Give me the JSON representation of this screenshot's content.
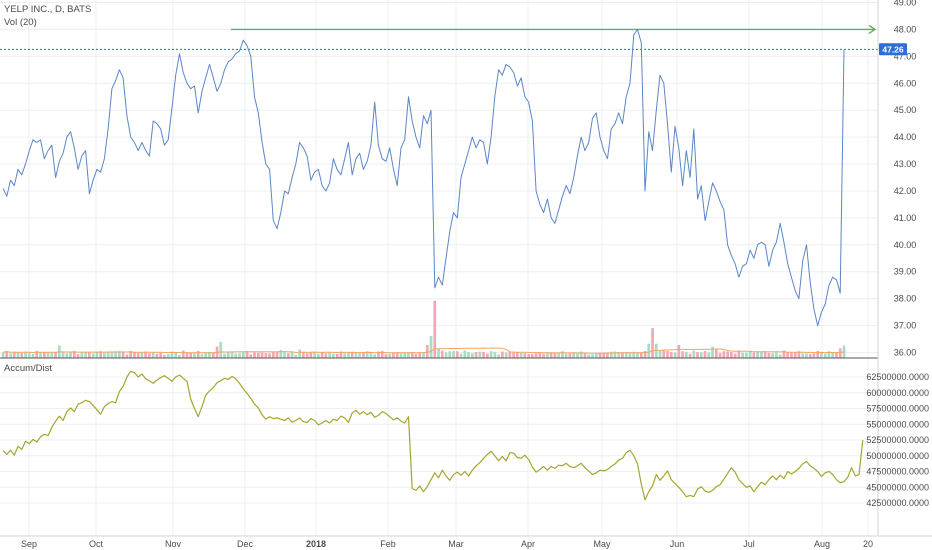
{
  "header": {
    "symbol": "YELP INC., D, BATS",
    "volume_label": "Vol (20)"
  },
  "indicator": {
    "title": "Accum/Dist"
  },
  "colors": {
    "price_line": "#5b86c8",
    "ad_line": "#a5a530",
    "up_volume": "#a8dcc4",
    "down_volume": "#f3a8b4",
    "volume_ma": "#f4a460",
    "arrow": "#6aad52",
    "price_tag_bg": "#2c6ed5",
    "divider": "#555555"
  },
  "chart_data": [
    {
      "type": "line",
      "x_ticks": [
        "Sep",
        "Oct",
        "Nov",
        "Dec",
        "2018",
        "Feb",
        "Mar",
        "Apr",
        "May",
        "Jun",
        "Jul",
        "Aug",
        "20"
      ],
      "y_ticks": [
        "36.00",
        "37.00",
        "38.00",
        "39.00",
        "40.00",
        "41.00",
        "42.00",
        "43.00",
        "44.00",
        "45.00",
        "46.00",
        "47.00",
        "48.00",
        "49.00"
      ],
      "ylim": [
        35.8,
        49.2
      ],
      "last_price": "47.26",
      "price_line_value": 47.26,
      "arrow_level": 48.0,
      "series": [
        {
          "values": [
            42.1,
            41.8,
            42.4,
            42.2,
            42.8,
            42.6,
            43.0,
            43.5,
            43.9,
            43.8,
            43.9,
            43.2,
            43.5,
            43.7,
            42.5,
            43.1,
            43.4,
            44.0,
            44.2,
            43.6,
            42.8,
            43.3,
            43.5,
            41.9,
            42.4,
            42.8,
            42.7,
            43.2,
            44.3,
            45.8,
            46.1,
            46.5,
            46.2,
            44.8,
            44.0,
            43.8,
            43.5,
            43.8,
            43.5,
            43.3,
            44.6,
            44.5,
            44.3,
            43.7,
            43.9,
            45.1,
            46.3,
            47.1,
            46.4,
            46.0,
            45.8,
            45.9,
            44.9,
            45.7,
            46.2,
            46.7,
            46.2,
            45.7,
            46.0,
            46.5,
            46.8,
            46.9,
            47.1,
            47.2,
            47.6,
            47.4,
            47.0,
            45.5,
            44.9,
            43.8,
            43.0,
            42.8,
            40.9,
            40.6,
            41.2,
            42.0,
            41.9,
            42.5,
            43.0,
            43.8,
            43.6,
            43.3,
            42.4,
            42.7,
            42.8,
            42.2,
            42.0,
            42.3,
            43.2,
            42.8,
            42.6,
            43.2,
            43.8,
            42.6,
            43.2,
            43.4,
            42.8,
            43.1,
            43.7,
            45.3,
            43.7,
            43.2,
            43.1,
            43.6,
            42.8,
            42.2,
            43.6,
            43.9,
            45.5,
            44.6,
            44.0,
            43.6,
            44.8,
            44.5,
            45.0,
            38.4,
            38.8,
            38.5,
            39.5,
            40.5,
            41.2,
            41.0,
            42.5,
            43.0,
            43.5,
            44.0,
            43.6,
            43.9,
            43.8,
            43.0,
            44.0,
            45.5,
            46.5,
            46.3,
            46.7,
            46.6,
            46.4,
            45.9,
            46.2,
            45.5,
            45.3,
            44.6,
            42.0,
            41.5,
            41.2,
            41.7,
            41.0,
            40.8,
            41.3,
            41.8,
            42.2,
            41.9,
            42.5,
            43.3,
            44.0,
            43.5,
            43.8,
            44.7,
            44.9,
            44.0,
            43.5,
            43.2,
            44.3,
            44.5,
            44.9,
            44.5,
            45.5,
            46.0,
            47.8,
            48.0,
            47.5,
            42.0,
            44.2,
            43.5,
            45.0,
            46.3,
            46.0,
            44.5,
            42.7,
            44.4,
            43.6,
            42.2,
            43.5,
            42.5,
            44.3,
            41.7,
            42.2,
            40.9,
            41.6,
            42.3,
            42.0,
            41.6,
            41.3,
            40.0,
            39.6,
            39.3,
            38.8,
            39.2,
            39.3,
            39.8,
            39.5,
            40.0,
            40.1,
            40.0,
            39.2,
            39.8,
            40.1,
            40.8,
            40.1,
            39.3,
            38.8,
            38.3,
            38.0,
            39.4,
            40.0,
            38.6,
            37.6,
            37.0,
            37.5,
            37.8,
            38.5,
            38.8,
            38.7,
            38.2,
            47.26
          ]
        }
      ]
    },
    {
      "type": "bar",
      "series": [
        {
          "name": "Vol (20)",
          "values": [
            2.2,
            2.7,
            1.8,
            2.4,
            2.1,
            1.9,
            2.5,
            2.0,
            1.6,
            2.7,
            2.2,
            2.1,
            2.4,
            1.9,
            2.2,
            4.8,
            2.3,
            1.8,
            2.1,
            2.7,
            1.5,
            2.3,
            2.2,
            2.1,
            1.7,
            2.4,
            2.6,
            2.0,
            2.5,
            2.2,
            2.6,
            2.6,
            2.3,
            1.4,
            2.7,
            2.1,
            2.0,
            2.1,
            2.5,
            1.8,
            2.3,
            1.6,
            2.0,
            1.2,
            1.6,
            2.5,
            2.2,
            1.2,
            2.8,
            2.1,
            2.0,
            1.8,
            2.7,
            1.5,
            2.2,
            2.4,
            2.1,
            4.4,
            6.2,
            1.7,
            2.1,
            2.4,
            1.7,
            1.8,
            2.5,
            2.7,
            1.4,
            2.2,
            2.0,
            2.1,
            1.9,
            1.8,
            2.2,
            2.3,
            3.0,
            2.5,
            1.9,
            2.6,
            1.3,
            3.2,
            2.4,
            1.8,
            2.2,
            2.5,
            1.7,
            2.2,
            1.8,
            2.2,
            1.7,
            1.6,
            2.5,
            1.8,
            2.1,
            2.4,
            1.9,
            1.9,
            2.3,
            2.6,
            2.1,
            1.4,
            2.5,
            2.7,
            1.5,
            1.6,
            2.0,
            2.3,
            1.8,
            2.0,
            2.1,
            2.1,
            1.6,
            2.2,
            2.2,
            5.0,
            8.5,
            22.0,
            3.5,
            2.9,
            2.1,
            2.6,
            2.7,
            2.6,
            1.6,
            2.9,
            2.4,
            1.8,
            2.3,
            2.5,
            2.3,
            1.7,
            2.6,
            2.4,
            1.4,
            2.5,
            2.1,
            2.2,
            2.0,
            2.1,
            2.0,
            1.9,
            1.5,
            1.5,
            1.8,
            2.2,
            1.6,
            1.9,
            2.0,
            1.9,
            1.8,
            2.6,
            1.6,
            1.7,
            2.2,
            1.7,
            2.5,
            2.1,
            1.4,
            1.4,
            1.6,
            2.0,
            2.1,
            2.1,
            2.4,
            2.5,
            2.3,
            2.2,
            2.3,
            1.9,
            2.4,
            2.2,
            2.0,
            2.7,
            5.5,
            11.5,
            5.5,
            2.9,
            3.1,
            2.7,
            2.3,
            2.1,
            5.0,
            2.6,
            2.4,
            1.6,
            2.9,
            2.3,
            2.2,
            2.7,
            2.1,
            4.4,
            3.2,
            1.9,
            2.6,
            2.5,
            2.3,
            1.7,
            2.8,
            2.0,
            2.0,
            2.5,
            2.1,
            2.6,
            2.3,
            2.5,
            2.0,
            1.8,
            2.2,
            1.4,
            2.9,
            2.1,
            2.0,
            2.1,
            2.6,
            1.8,
            1.8,
            1.5,
            1.7,
            2.7,
            2.1,
            1.7,
            2.6,
            2.3,
            2.3,
            3.7,
            4.8,
            4.5,
            5.3,
            7.8,
            13.0
          ]
        }
      ]
    },
    {
      "type": "line",
      "title": "Accum/Dist",
      "y_ticks": [
        "42500000.0000",
        "45000000.0000",
        "47500000.0000",
        "50000000.0000",
        "52500000.0000",
        "55000000.0000",
        "57500000.0000",
        "60000000.0000",
        "62500000.0000"
      ],
      "ylim": [
        41000000,
        65000000
      ],
      "series": [
        {
          "name": "Accum/Dist",
          "values": [
            50800000,
            50200000,
            50900000,
            50100000,
            51500000,
            51000000,
            52300000,
            51900000,
            52600000,
            52200000,
            53000000,
            53400000,
            53200000,
            54500000,
            55500000,
            56300000,
            55600000,
            57000000,
            57600000,
            57000000,
            58200000,
            58400000,
            58800000,
            58600000,
            58000000,
            57300000,
            56600000,
            57800000,
            58300000,
            58600000,
            58400000,
            60200000,
            61000000,
            62500000,
            63400000,
            63200000,
            62500000,
            63000000,
            62200000,
            61900000,
            61500000,
            62000000,
            62400000,
            62700000,
            62300000,
            61800000,
            62500000,
            62800000,
            62300000,
            61800000,
            59000000,
            57500000,
            56200000,
            57800000,
            59600000,
            60300000,
            60800000,
            61600000,
            61900000,
            62300000,
            62100000,
            62600000,
            62200000,
            61500000,
            60600000,
            59900000,
            59100000,
            58200000,
            57600000,
            56500000,
            55800000,
            56200000,
            55900000,
            56000000,
            55800000,
            55600000,
            56000000,
            55300000,
            55600000,
            56000000,
            55400000,
            55300000,
            55900000,
            55600000,
            54900000,
            55200000,
            55600000,
            55200000,
            55800000,
            55600000,
            56300000,
            56000000,
            55300000,
            56800000,
            57200000,
            56600000,
            57000000,
            56500000,
            56900000,
            56100000,
            56400000,
            57000000,
            56700000,
            56200000,
            55700000,
            56000000,
            55500000,
            55200000,
            56200000,
            44800000,
            44500000,
            45200000,
            44300000,
            45100000,
            46200000,
            47300000,
            46500000,
            47700000,
            46800000,
            46100000,
            47000000,
            47400000,
            46900000,
            47500000,
            46800000,
            47700000,
            48400000,
            48900000,
            49600000,
            50200000,
            50700000,
            50000000,
            49200000,
            49900000,
            49200000,
            50500000,
            50400000,
            49700000,
            49600000,
            50100000,
            49400000,
            48200000,
            47400000,
            47800000,
            48300000,
            47700000,
            48300000,
            48000000,
            48500000,
            48400000,
            48800000,
            48300000,
            48100000,
            48400000,
            48800000,
            48100000,
            47600000,
            47000000,
            47300000,
            47700000,
            47600000,
            47800000,
            48300000,
            48700000,
            49300000,
            49600000,
            50500000,
            50900000,
            50000000,
            48700000,
            45500000,
            43000000,
            44300000,
            45200000,
            47000000,
            46100000,
            46800000,
            47600000,
            46200000,
            45600000,
            45000000,
            44300000,
            43500000,
            43700000,
            43500000,
            44700000,
            45100000,
            44400000,
            44200000,
            44500000,
            45100000,
            45400000,
            46300000,
            47200000,
            48100000,
            47400000,
            46200000,
            45600000,
            45000000,
            45200000,
            44300000,
            45100000,
            45800000,
            45400000,
            46200000,
            46800000,
            46200000,
            46900000,
            46400000,
            47500000,
            47100000,
            47500000,
            48000000,
            48700000,
            49100000,
            48400000,
            48000000,
            47500000,
            46700000,
            47300000,
            47500000,
            47000000,
            46200000,
            45700000,
            45900000,
            46600000,
            48100000,
            46800000,
            47000000,
            52500000
          ]
        }
      ]
    }
  ]
}
